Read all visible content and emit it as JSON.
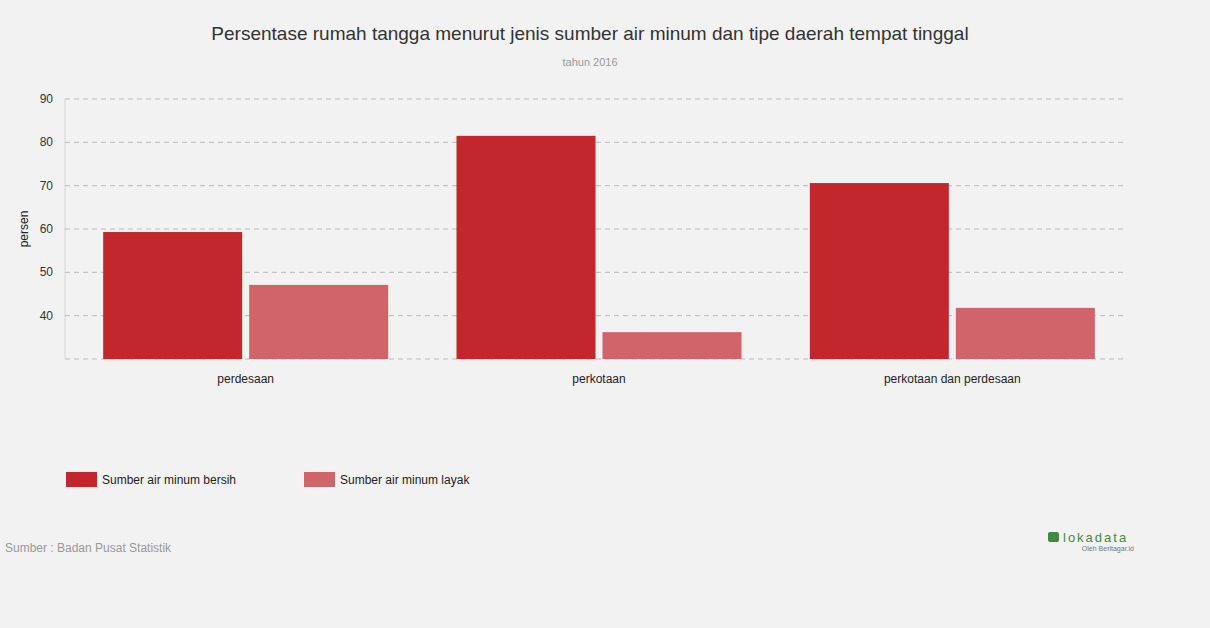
{
  "chart_data": {
    "type": "bar",
    "title": "Persentase rumah tangga menurut jenis sumber air minum dan tipe daerah tempat tinggal",
    "subtitle": "tahun 2016",
    "y_label": "persen",
    "categories": [
      "perdesaan",
      "perkotaan",
      "perkotaan dan perdesaan"
    ],
    "series": [
      {
        "name": "Sumber air minum bersih",
        "color": "#c1272d",
        "values": [
          59.3,
          81.5,
          70.6
        ]
      },
      {
        "name": "Sumber air minum layak",
        "color": "#d0646a",
        "values": [
          47.1,
          36.2,
          41.8
        ]
      }
    ],
    "ylim": [
      30,
      90
    ],
    "yticks": [
      40,
      50,
      60,
      70,
      80,
      90
    ],
    "grid": true,
    "legend": "bottom-left",
    "source": "Sumber : Badan Pusat Statistik",
    "credit": "lokadata",
    "credit_sub": "Oleh Beritagar.id"
  }
}
